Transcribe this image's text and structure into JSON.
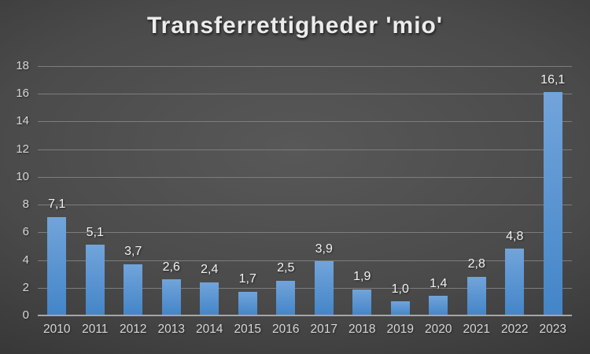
{
  "title": "Transferrettigheder 'mio'",
  "colors": {
    "background_center": "#585858",
    "background_edge": "#282828",
    "bar_top": "#72a4da",
    "bar_bottom": "#4385c8",
    "gridline": "#7d7d7d",
    "axis_line": "#a6a6a6",
    "tick_label": "#d6d6d6",
    "data_label": "#f2f2f2",
    "title_color": "#ececec"
  },
  "chart_data": {
    "type": "bar",
    "title": "Transferrettigheder 'mio'",
    "categories": [
      "2010",
      "2011",
      "2012",
      "2013",
      "2014",
      "2015",
      "2016",
      "2017",
      "2018",
      "2019",
      "2020",
      "2021",
      "2022",
      "2023"
    ],
    "values": [
      7.1,
      5.1,
      3.7,
      2.6,
      2.4,
      1.7,
      2.5,
      3.9,
      1.9,
      1.0,
      1.4,
      2.8,
      4.8,
      16.1
    ],
    "value_labels": [
      "7,1",
      "5,1",
      "3,7",
      "2,6",
      "2,4",
      "1,7",
      "2,5",
      "3,9",
      "1,9",
      "1,0",
      "1,4",
      "2,8",
      "4,8",
      "16,1"
    ],
    "xlabel": "",
    "ylabel": "",
    "ylim": [
      0,
      18
    ],
    "ytick_step": 2,
    "ytick_labels": [
      "0",
      "2",
      "4",
      "6",
      "8",
      "10",
      "12",
      "14",
      "16",
      "18"
    ],
    "grid": true,
    "legend": "none"
  }
}
